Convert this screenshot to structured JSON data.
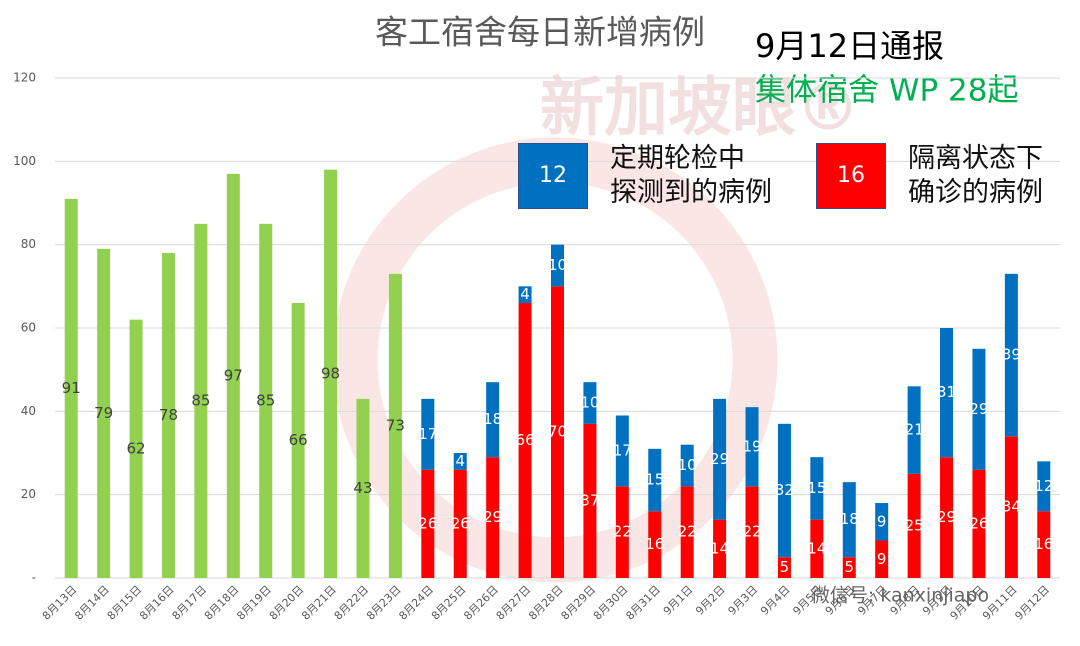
{
  "chart_data": {
    "type": "stacked_bar",
    "title": "客工宿舍每日新增病例",
    "annotations": [
      "9月12日通报",
      "集体宿舍 WP 28起"
    ],
    "watermarks": [
      "新加坡眼®",
      "微信号: kanxinjiapo"
    ],
    "categories": [
      "8月13日",
      "8月14日",
      "8月15日",
      "8月16日",
      "8月17日",
      "8月18日",
      "8月19日",
      "8月20日",
      "8月21日",
      "8月22日",
      "8月23日",
      "8月24日",
      "8月25日",
      "8月26日",
      "8月27日",
      "8月28日",
      "8月29日",
      "8月30日",
      "8月31日",
      "9月1日",
      "9月2日",
      "9月3日",
      "9月4日",
      "9月5日",
      "9月6日",
      "9月7日",
      "9月8日",
      "9月9日",
      "9月10日",
      "9月11日",
      "9月12日"
    ],
    "series": [
      {
        "color": "#92d050",
        "values": [
          91,
          79,
          62,
          78,
          85,
          97,
          85,
          66,
          98,
          43,
          73,
          null,
          null,
          null,
          null,
          null,
          null,
          null,
          null,
          null,
          null,
          null,
          null,
          null,
          null,
          null,
          null,
          null,
          null,
          null,
          null
        ]
      },
      {
        "name": [
          "隔离状态下",
          "确诊的病例"
        ],
        "total": 16,
        "color": "#ff0000",
        "values": [
          null,
          null,
          null,
          null,
          null,
          null,
          null,
          null,
          null,
          null,
          null,
          26,
          26,
          29,
          66,
          70,
          37,
          22,
          16,
          22,
          14,
          22,
          5,
          14,
          5,
          9,
          25,
          29,
          26,
          34,
          16
        ]
      },
      {
        "name": [
          "定期轮检中",
          "探测到的病例"
        ],
        "total": 12,
        "color": "#0070c0",
        "values": [
          null,
          null,
          null,
          null,
          null,
          null,
          null,
          null,
          null,
          null,
          null,
          17,
          4,
          18,
          4,
          10,
          10,
          17,
          15,
          10,
          29,
          19,
          32,
          15,
          18,
          9,
          21,
          31,
          29,
          39,
          12
        ]
      }
    ],
    "ylim": [
      0,
      120
    ],
    "yticks": [
      {
        "value": 0,
        "label": "-"
      },
      20,
      40,
      60,
      80,
      100,
      120
    ],
    "grid": true
  }
}
